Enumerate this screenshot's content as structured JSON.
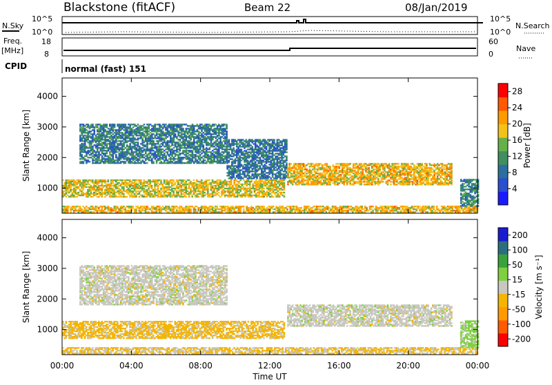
{
  "header": {
    "station": "Blackstone (fitACF)",
    "beam": "Beam 22",
    "date": "08/Jan/2019"
  },
  "strips": {
    "nsky_label": "N.Sky",
    "nsearch_label": "N.Search",
    "nsky_ticks": [
      "10^5",
      "10^0"
    ],
    "nsearch_ticks": [
      "10^5",
      "10^0"
    ],
    "freq_label": "Freq.",
    "freq_unit": "[MHz]",
    "freq_ticks": [
      "18",
      "8"
    ],
    "nave_label": "Nave",
    "nave_ticks": [
      "60",
      "0"
    ],
    "cpid_label": "CPID",
    "cpid_value": "normal (fast) 151"
  },
  "colors": {
    "power_scale": [
      "#1b1bff",
      "#2a4fd0",
      "#2b6f9e",
      "#3f8f60",
      "#66b04a",
      "#f2c21a",
      "#ff9a00",
      "#ff5a00",
      "#ff0000"
    ],
    "velocity_scale": [
      "#ff0000",
      "#ff5a00",
      "#ff9a00",
      "#f5b400",
      "#c8c8c0",
      "#7fd040",
      "#3aa23a",
      "#2b6f7e",
      "#1b1bcf"
    ]
  },
  "chart_data": [
    {
      "type": "heatmap",
      "title": "Power",
      "ylabel": "Slant Range [km]",
      "xlabel": "Time UT",
      "xlim": [
        "00:00",
        "24:00"
      ],
      "ylim": [
        180,
        4600
      ],
      "y_ticks": [
        1000,
        2000,
        3000,
        4000
      ],
      "x_ticks": [
        "00:00",
        "04:00",
        "08:00",
        "12:00",
        "16:00",
        "20:00",
        "00:00"
      ],
      "colorbar": {
        "label": "Power [dB]",
        "ticks": [
          4,
          8,
          12,
          16,
          20,
          24,
          28
        ],
        "range": [
          0,
          30
        ]
      },
      "regions": [
        {
          "t": [
            0.0,
            12.8
          ],
          "range_km": [
            700,
            1250
          ],
          "power_db": 18
        },
        {
          "t": [
            0.0,
            24.0
          ],
          "range_km": [
            200,
            400
          ],
          "power_db": 20
        },
        {
          "t": [
            1.0,
            9.5
          ],
          "range_km": [
            1800,
            3100
          ],
          "power_db": 9
        },
        {
          "t": [
            9.5,
            13.0
          ],
          "range_km": [
            1300,
            2600
          ],
          "power_db": 8
        },
        {
          "t": [
            13.0,
            22.5
          ],
          "range_km": [
            1100,
            1800
          ],
          "power_db": 20
        },
        {
          "t": [
            23.0,
            24.0
          ],
          "range_km": [
            400,
            1300
          ],
          "power_db": 10
        }
      ]
    },
    {
      "type": "heatmap",
      "title": "Velocity",
      "ylabel": "Slant Range [km]",
      "xlabel": "Time UT",
      "xlim": [
        "00:00",
        "24:00"
      ],
      "ylim": [
        180,
        4600
      ],
      "y_ticks": [
        1000,
        2000,
        3000,
        4000
      ],
      "x_ticks": [
        "00:00",
        "04:00",
        "08:00",
        "12:00",
        "16:00",
        "20:00",
        "00:00"
      ],
      "colorbar": {
        "label": "Velocity [m s⁻¹]",
        "ticks": [
          "200",
          "100",
          "50",
          "15",
          "-15",
          "-50",
          "-100",
          "-200"
        ]
      },
      "regions": [
        {
          "t": [
            0.0,
            12.8
          ],
          "range_km": [
            700,
            1250
          ],
          "velocity": -40
        },
        {
          "t": [
            0.0,
            24.0
          ],
          "range_km": [
            200,
            400
          ],
          "velocity": -30
        },
        {
          "t": [
            1.0,
            9.5
          ],
          "range_km": [
            1800,
            3100
          ],
          "velocity": 0
        },
        {
          "t": [
            13.0,
            22.5
          ],
          "range_km": [
            1100,
            1800
          ],
          "velocity": 0
        },
        {
          "t": [
            23.0,
            24.0
          ],
          "range_km": [
            400,
            1300
          ],
          "velocity": 40
        }
      ]
    }
  ],
  "xaxis_label": "Time UT"
}
